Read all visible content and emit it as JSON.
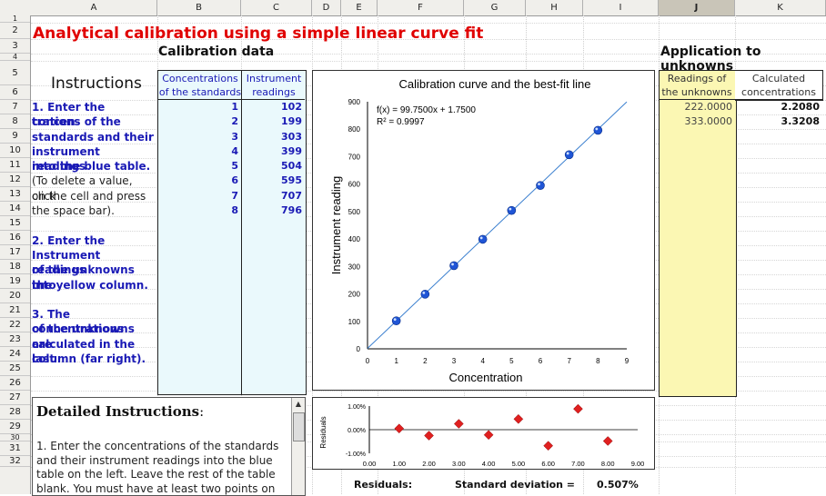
{
  "columns": [
    "A",
    "B",
    "C",
    "D",
    "E",
    "F",
    "G",
    "H",
    "I",
    "J",
    "K"
  ],
  "rows": [
    "1",
    "2",
    "3",
    "4",
    "5",
    "6",
    "7",
    "8",
    "9",
    "10",
    "11",
    "12",
    "13",
    "14",
    "15",
    "16",
    "17",
    "18",
    "19",
    "20",
    "21",
    "22",
    "23",
    "24",
    "25",
    "26",
    "27",
    "28",
    "29",
    "30",
    "31",
    "32"
  ],
  "title": "Analytical calibration using a simple linear curve fit",
  "calibration_title": "Calibration data",
  "application_title": "Application to unknowns",
  "instructions_heading": "Instructions",
  "std_header": [
    "Concentrations",
    "of the standards"
  ],
  "inst_header": [
    "Instrument",
    "readings"
  ],
  "unk_header": [
    "Readings of",
    "the unknowns"
  ],
  "calc_header": [
    "Calculated",
    "concentrations"
  ],
  "standards": [
    "1",
    "2",
    "3",
    "4",
    "5",
    "6",
    "7",
    "8"
  ],
  "readings": [
    "102",
    "199",
    "303",
    "399",
    "504",
    "595",
    "707",
    "796"
  ],
  "unknowns": [
    "222.0000",
    "333.0000"
  ],
  "calculated": [
    "2.2080",
    "3.3208"
  ],
  "instructions": [
    {
      "text": "1. Enter the concen-",
      "style": "bold"
    },
    {
      "text": "trations of the",
      "style": "bold"
    },
    {
      "text": "standards and their",
      "style": "bold"
    },
    {
      "text": "instrument readings",
      "style": "bold"
    },
    {
      "text": "into the blue table.",
      "style": "bold"
    },
    {
      "text": "(To delete a value, click",
      "style": "plain"
    },
    {
      "text": " on the cell and press",
      "style": "plain"
    },
    {
      "text": " the space bar).",
      "style": "plain"
    },
    {
      "text": "",
      "style": "plain"
    },
    {
      "text": "2. Enter the",
      "style": "bold"
    },
    {
      "text": "Instrument readings",
      "style": "bold"
    },
    {
      "text": "of the unknowns into",
      "style": "bold"
    },
    {
      "text": "the yellow column.",
      "style": "bold"
    },
    {
      "text": "",
      "style": "plain"
    },
    {
      "text": "3. The concentrations",
      "style": "bold"
    },
    {
      "text": "of the unknowns are",
      "style": "bold"
    },
    {
      "text": "calculated in the last",
      "style": "bold"
    },
    {
      "text": "column (far right).",
      "style": "bold"
    }
  ],
  "detailed": {
    "heading": "Detailed Instructions",
    "colon": ":",
    "lines": [
      "1. Enter the concentrations of the standards",
      "and their instrument readings into the blue",
      "table on the left. Leave the rest of the table",
      "blank. You must have at least two points on"
    ]
  },
  "chart_data": [
    {
      "type": "scatter",
      "title": "Calibration curve and the best-fit line",
      "xlabel": "Concentration",
      "ylabel": "Instrument reading",
      "xlim": [
        0,
        9
      ],
      "ylim": [
        0,
        900
      ],
      "xticks": [
        "0",
        "1",
        "2",
        "3",
        "4",
        "5",
        "6",
        "7",
        "8",
        "9"
      ],
      "yticks": [
        "0",
        "100",
        "200",
        "300",
        "400",
        "500",
        "600",
        "700",
        "800",
        "900"
      ],
      "series": [
        {
          "x": [
            1,
            2,
            3,
            4,
            5,
            6,
            7,
            8
          ],
          "y": [
            102,
            199,
            303,
            399,
            504,
            595,
            707,
            796
          ]
        }
      ],
      "fit_line": {
        "slope": 99.75,
        "intercept": 1.75
      },
      "annotations": [
        "f(x) = 99.7500x + 1.7500",
        "R² = 0.9997"
      ],
      "point_color": "#1f55d6",
      "line_color": "#3a7fcf"
    },
    {
      "type": "scatter",
      "ylabel": "Residuals",
      "xlim": [
        0,
        9
      ],
      "ylim": [
        -1,
        1
      ],
      "xticks": [
        "0.00",
        "1.00",
        "2.00",
        "3.00",
        "4.00",
        "5.00",
        "6.00",
        "7.00",
        "8.00",
        "9.00"
      ],
      "yticks": [
        "1.00%",
        "0.00%",
        "-1.00%"
      ],
      "series": [
        {
          "x": [
            1,
            2,
            3,
            4,
            5,
            6,
            7,
            8
          ],
          "y": [
            0.05,
            -0.25,
            0.25,
            -0.22,
            0.45,
            -0.68,
            0.88,
            -0.48
          ]
        }
      ],
      "point_color": "#e02020"
    }
  ],
  "footer": {
    "residuals_label": "Residuals:",
    "stdev_label": "Standard deviation =",
    "stdev_value": "0.507%"
  }
}
